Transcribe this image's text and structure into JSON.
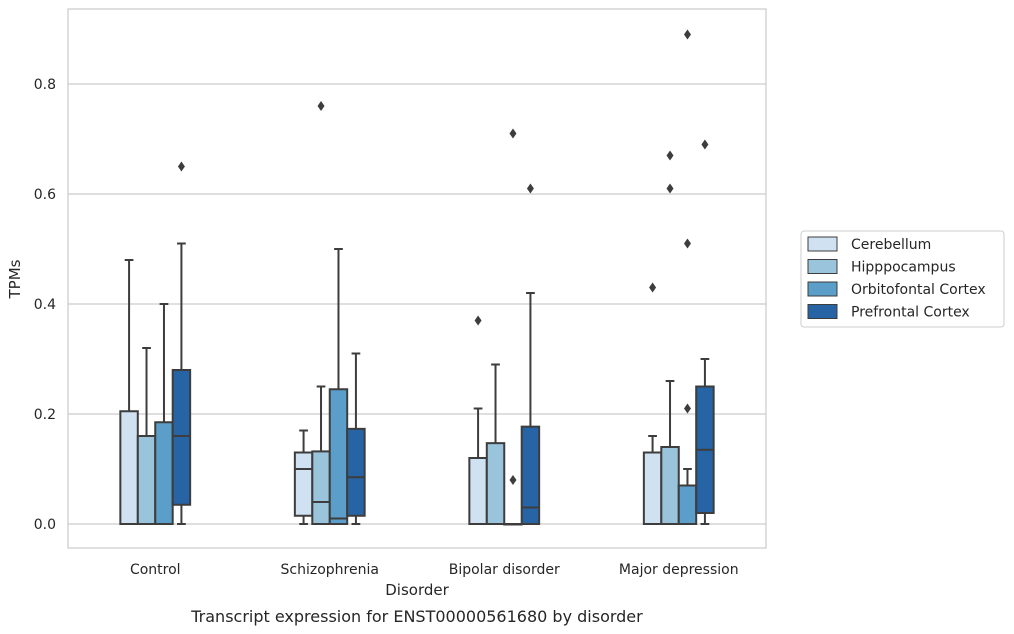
{
  "chart_data": {
    "type": "box",
    "title": "",
    "caption": "Transcript expression for ENST00000561680 by disorder",
    "xlabel": "Disorder",
    "ylabel": "TPMs",
    "ylim": [
      -0.043,
      0.94
    ],
    "yticks": [
      0.0,
      0.2,
      0.4,
      0.6,
      0.8
    ],
    "ytick_labels": [
      "0.0",
      "0.2",
      "0.4",
      "0.6",
      "0.8"
    ],
    "grid": "horizontal",
    "legend_position": "right",
    "categories": [
      "Control",
      "Schizophrenia",
      "Bipolar disorder",
      "Major depression"
    ],
    "series": [
      {
        "name": "Cerebellum",
        "color": "#d0e1f1",
        "boxes": [
          {
            "whislo": 0.0,
            "q1": 0.0,
            "med": 0.0,
            "q3": 0.205,
            "whishi": 0.48,
            "fliers": []
          },
          {
            "whislo": 0.0,
            "q1": 0.015,
            "med": 0.1,
            "q3": 0.13,
            "whishi": 0.17,
            "fliers": []
          },
          {
            "whislo": 0.0,
            "q1": 0.0,
            "med": 0.0,
            "q3": 0.12,
            "whishi": 0.21,
            "fliers": [
              0.37
            ]
          },
          {
            "whislo": 0.0,
            "q1": 0.0,
            "med": 0.0,
            "q3": 0.13,
            "whishi": 0.16,
            "fliers": [
              0.43
            ]
          }
        ]
      },
      {
        "name": "Hipppocampus",
        "color": "#9ac3dc",
        "boxes": [
          {
            "whislo": 0.0,
            "q1": 0.0,
            "med": 0.0,
            "q3": 0.16,
            "whishi": 0.32,
            "fliers": []
          },
          {
            "whislo": 0.0,
            "q1": 0.0,
            "med": 0.04,
            "q3": 0.132,
            "whishi": 0.25,
            "fliers": [
              0.76
            ]
          },
          {
            "whislo": 0.0,
            "q1": 0.0,
            "med": 0.0,
            "q3": 0.147,
            "whishi": 0.29,
            "fliers": []
          },
          {
            "whislo": 0.0,
            "q1": 0.0,
            "med": 0.0,
            "q3": 0.14,
            "whishi": 0.26,
            "fliers": [
              0.61,
              0.67
            ]
          }
        ]
      },
      {
        "name": "Orbitofontal Cortex",
        "color": "#5a9ec9",
        "boxes": [
          {
            "whislo": 0.0,
            "q1": 0.0,
            "med": 0.0,
            "q3": 0.185,
            "whishi": 0.4,
            "fliers": []
          },
          {
            "whislo": 0.0,
            "q1": 0.0,
            "med": 0.01,
            "q3": 0.245,
            "whishi": 0.5,
            "fliers": []
          },
          {
            "whislo": 0.0,
            "q1": 0.0,
            "med": 0.0,
            "q3": 0.0,
            "whishi": 0.0,
            "fliers": [
              0.08,
              0.71
            ]
          },
          {
            "whislo": 0.0,
            "q1": 0.0,
            "med": 0.0,
            "q3": 0.07,
            "whishi": 0.1,
            "fliers": [
              0.21,
              0.51,
              0.89
            ]
          }
        ]
      },
      {
        "name": "Prefrontal Cortex",
        "color": "#2664a5",
        "boxes": [
          {
            "whislo": 0.0,
            "q1": 0.035,
            "med": 0.16,
            "q3": 0.28,
            "whishi": 0.51,
            "fliers": [
              0.65
            ]
          },
          {
            "whislo": 0.0,
            "q1": 0.015,
            "med": 0.085,
            "q3": 0.173,
            "whishi": 0.31,
            "fliers": []
          },
          {
            "whislo": 0.0,
            "q1": 0.0,
            "med": 0.03,
            "q3": 0.177,
            "whishi": 0.42,
            "fliers": [
              0.61
            ]
          },
          {
            "whislo": 0.0,
            "q1": 0.02,
            "med": 0.135,
            "q3": 0.25,
            "whishi": 0.3,
            "fliers": [
              0.69
            ]
          }
        ]
      }
    ]
  }
}
